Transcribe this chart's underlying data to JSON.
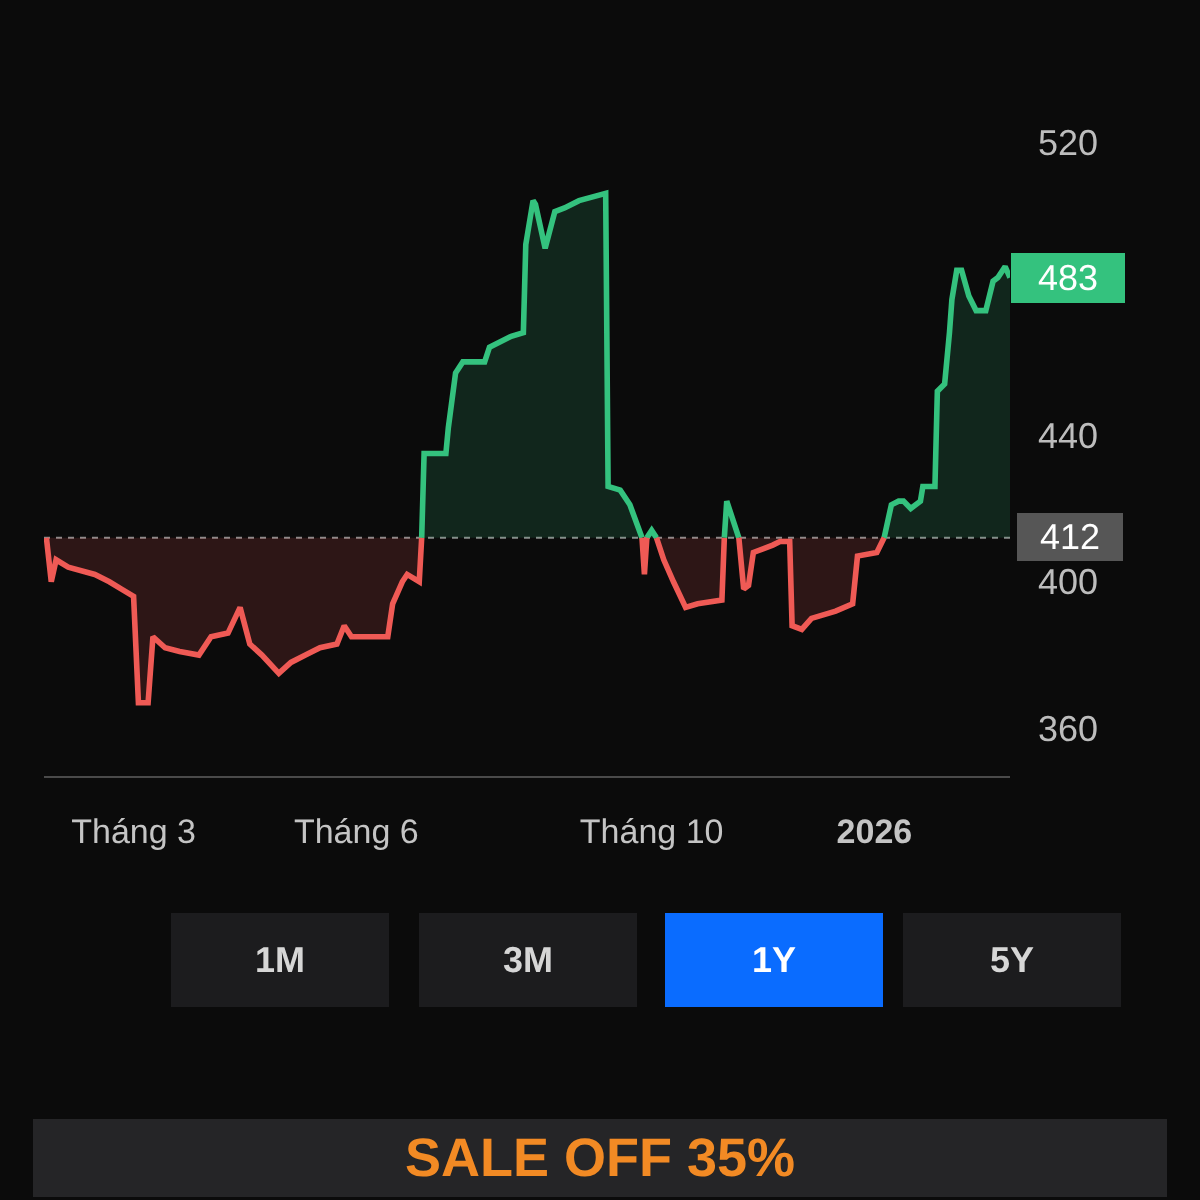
{
  "chart_data": {
    "type": "area",
    "x": [
      "2025-01-24",
      "2025-01-26",
      "2025-01-28",
      "2025-02-02",
      "2025-02-13",
      "2025-02-19",
      "2025-02-24",
      "2025-03-01",
      "2025-03-03",
      "2025-03-07",
      "2025-03-09",
      "2025-03-14",
      "2025-03-20",
      "2025-03-28",
      "2025-04-02",
      "2025-04-09",
      "2025-04-14",
      "2025-04-18",
      "2025-04-23",
      "2025-04-30",
      "2025-05-05",
      "2025-05-11",
      "2025-05-17",
      "2025-05-24",
      "2025-05-27",
      "2025-05-30",
      "2025-06-14",
      "2025-06-16",
      "2025-06-20",
      "2025-06-22",
      "2025-06-27",
      "2025-06-28",
      "2025-06-29",
      "2025-07-08",
      "2025-07-09",
      "2025-07-12",
      "2025-07-15",
      "2025-07-24",
      "2025-07-26",
      "2025-08-04",
      "2025-08-09",
      "2025-08-10",
      "2025-08-13",
      "2025-08-14",
      "2025-08-18",
      "2025-08-22",
      "2025-08-26",
      "2025-09-01",
      "2025-09-12",
      "2025-09-13",
      "2025-09-18",
      "2025-09-22",
      "2025-09-27",
      "2025-09-28",
      "2025-09-29",
      "2025-10-01",
      "2025-10-03",
      "2025-10-06",
      "2025-10-10",
      "2025-10-15",
      "2025-10-20",
      "2025-10-30",
      "2025-10-31",
      "2025-11-01",
      "2025-11-04",
      "2025-11-06",
      "2025-11-08",
      "2025-11-10",
      "2025-11-12",
      "2025-11-20",
      "2025-11-23",
      "2025-11-27",
      "2025-11-28",
      "2025-12-02",
      "2025-12-06",
      "2025-12-16",
      "2025-12-23",
      "2025-12-25",
      "2026-01-02",
      "2026-01-05",
      "2026-01-08",
      "2026-01-11",
      "2026-01-13",
      "2026-01-16",
      "2026-01-20",
      "2026-01-21",
      "2026-01-26",
      "2026-01-27",
      "2026-01-30",
      "2026-02-01",
      "2026-02-02",
      "2026-02-04",
      "2026-02-06",
      "2026-02-09",
      "2026-02-12",
      "2026-02-16",
      "2026-02-19",
      "2026-02-21",
      "2026-02-24",
      "2026-02-26"
    ],
    "series": [
      {
        "color": "#34c27e",
        "values": [
          null,
          null,
          null,
          null,
          null,
          null,
          null,
          null,
          null,
          null,
          null,
          null,
          null,
          null,
          null,
          null,
          null,
          null,
          null,
          null,
          null,
          null,
          null,
          null,
          null,
          null,
          null,
          null,
          null,
          null,
          null,
          412,
          435,
          435,
          442,
          457,
          460,
          460,
          464,
          467,
          468,
          492,
          504,
          503,
          491,
          501,
          502,
          504,
          506,
          426,
          425,
          421,
          412,
          null,
          412,
          414,
          412,
          null,
          null,
          null,
          null,
          null,
          412,
          422,
          416,
          412,
          null,
          null,
          null,
          null,
          null,
          null,
          null,
          null,
          null,
          null,
          null,
          null,
          null,
          412,
          421,
          422,
          422,
          420,
          422,
          426,
          426,
          452,
          454,
          468,
          477,
          485,
          485,
          478,
          474,
          474,
          482,
          483,
          486,
          483
        ]
      },
      {
        "color": "#ef5a55",
        "values": [
          412,
          400,
          406,
          404,
          402,
          400,
          398,
          396,
          367,
          367,
          385,
          382,
          381,
          380,
          385,
          386,
          393,
          383,
          380,
          375,
          378,
          380,
          382,
          383,
          388,
          385,
          385,
          394,
          400,
          402,
          400,
          412,
          null,
          null,
          null,
          null,
          null,
          null,
          null,
          null,
          null,
          null,
          null,
          null,
          null,
          null,
          null,
          null,
          null,
          null,
          null,
          null,
          412,
          402,
          412,
          null,
          412,
          406,
          400,
          393,
          394,
          395,
          412,
          null,
          null,
          412,
          398,
          399,
          408,
          410,
          411,
          411,
          388,
          387,
          390,
          392,
          394,
          407,
          408,
          412,
          null,
          null,
          null,
          null,
          null,
          null,
          null,
          null,
          null,
          null,
          null,
          null,
          null,
          null,
          null,
          null,
          null,
          null,
          null,
          null
        ]
      }
    ],
    "xlim": [
      "2025-01-23",
      "2026-02-26"
    ],
    "xticks": [
      {
        "value": "2025-03-01",
        "label": "Tháng 3"
      },
      {
        "value": "2025-06-01",
        "label": "Tháng 6"
      },
      {
        "value": "2025-10-01",
        "label": "Tháng 10"
      },
      {
        "value": "2026-01-01",
        "label": "2026"
      }
    ],
    "ylim": [
      347,
      520
    ],
    "yticks": [
      360,
      400,
      440,
      520
    ],
    "ref_lines": [
      {
        "axis": "y",
        "value": 412,
        "label": "412",
        "line_style": "dotted",
        "color": "#8c8c8c"
      }
    ],
    "annotations": [
      "1M",
      "3M",
      "1Y",
      "5Y",
      "SALE OFF 35%",
      {
        "text": "483",
        "x": "2026-02-26",
        "y": 483
      }
    ]
  }
}
